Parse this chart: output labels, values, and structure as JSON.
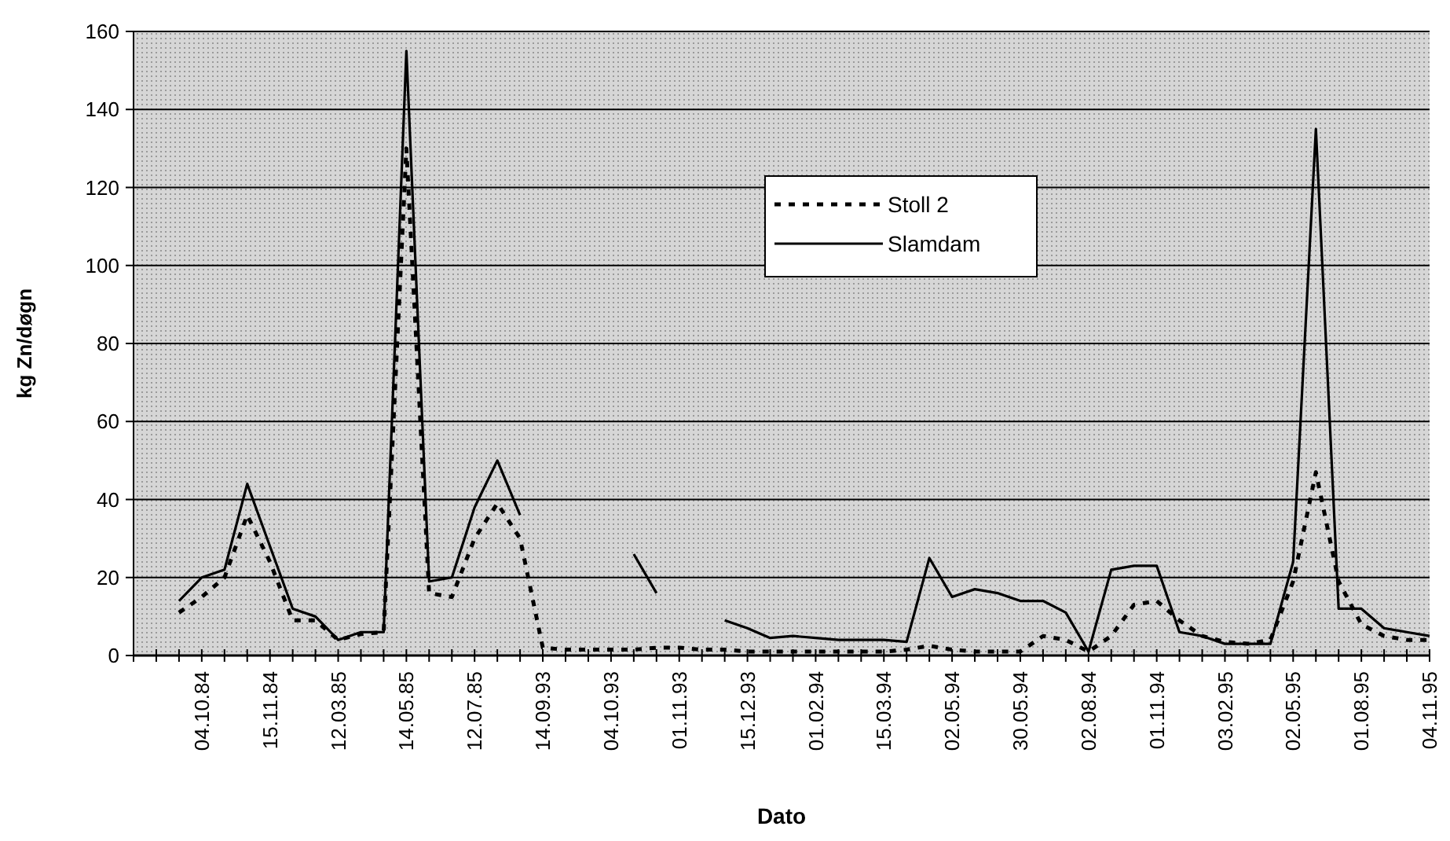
{
  "chart_data": {
    "type": "line",
    "xlabel": "Dato",
    "ylabel": "kg Zn/døgn",
    "categories": [
      null,
      null,
      null,
      "04.10.84",
      null,
      null,
      "15.11.84",
      null,
      null,
      "12.03.85",
      null,
      null,
      "14.05.85",
      null,
      null,
      "12.07.85",
      null,
      null,
      "14.09.93",
      null,
      null,
      "04.10.93",
      null,
      null,
      "01.11.93",
      null,
      null,
      "15.12.93",
      null,
      null,
      "01.02.94",
      null,
      null,
      "15.03.94",
      null,
      null,
      "02.05.94",
      null,
      null,
      "30.05.94",
      null,
      null,
      "02.08.94",
      null,
      null,
      "01.11.94",
      null,
      null,
      "03.02.95",
      null,
      null,
      "02.05.95",
      null,
      null,
      "01.08.95",
      null,
      null,
      "04.11.95"
    ],
    "series": [
      {
        "name": "Stoll 2",
        "color": "#000000",
        "line_style": "dotted",
        "values": [
          null,
          null,
          11,
          15,
          20,
          36,
          24,
          9,
          9,
          4,
          5.5,
          6,
          130,
          16,
          15,
          30,
          39,
          30,
          2,
          1.5,
          1.5,
          1.5,
          1.5,
          2,
          2,
          1.5,
          1.5,
          1,
          1,
          1,
          1,
          1,
          1,
          1,
          1.5,
          2.5,
          1.5,
          1,
          1,
          1,
          5,
          4,
          1,
          5,
          13,
          14,
          9,
          5,
          3.5,
          3,
          4,
          19,
          47,
          19,
          8,
          5,
          4,
          4
        ]
      },
      {
        "name": "Slamdam",
        "color": "#000000",
        "line_style": "solid",
        "values": [
          null,
          null,
          14,
          20,
          22,
          44,
          28,
          12,
          10,
          4,
          6,
          6,
          155,
          19,
          20,
          38,
          50,
          36,
          null,
          null,
          null,
          null,
          26,
          16,
          null,
          null,
          9,
          7,
          4.5,
          5,
          4.5,
          4,
          4,
          4,
          3.5,
          25,
          15,
          17,
          16,
          14,
          14,
          11,
          1,
          22,
          23,
          23,
          6,
          5,
          3,
          3,
          3,
          24,
          135,
          12,
          12,
          7,
          6,
          5
        ]
      }
    ],
    "ylim": [
      0,
      160
    ],
    "yticks": [
      0,
      20,
      40,
      60,
      80,
      100,
      120,
      140,
      160
    ],
    "grid": "y",
    "legend": "top",
    "marker": "none"
  }
}
